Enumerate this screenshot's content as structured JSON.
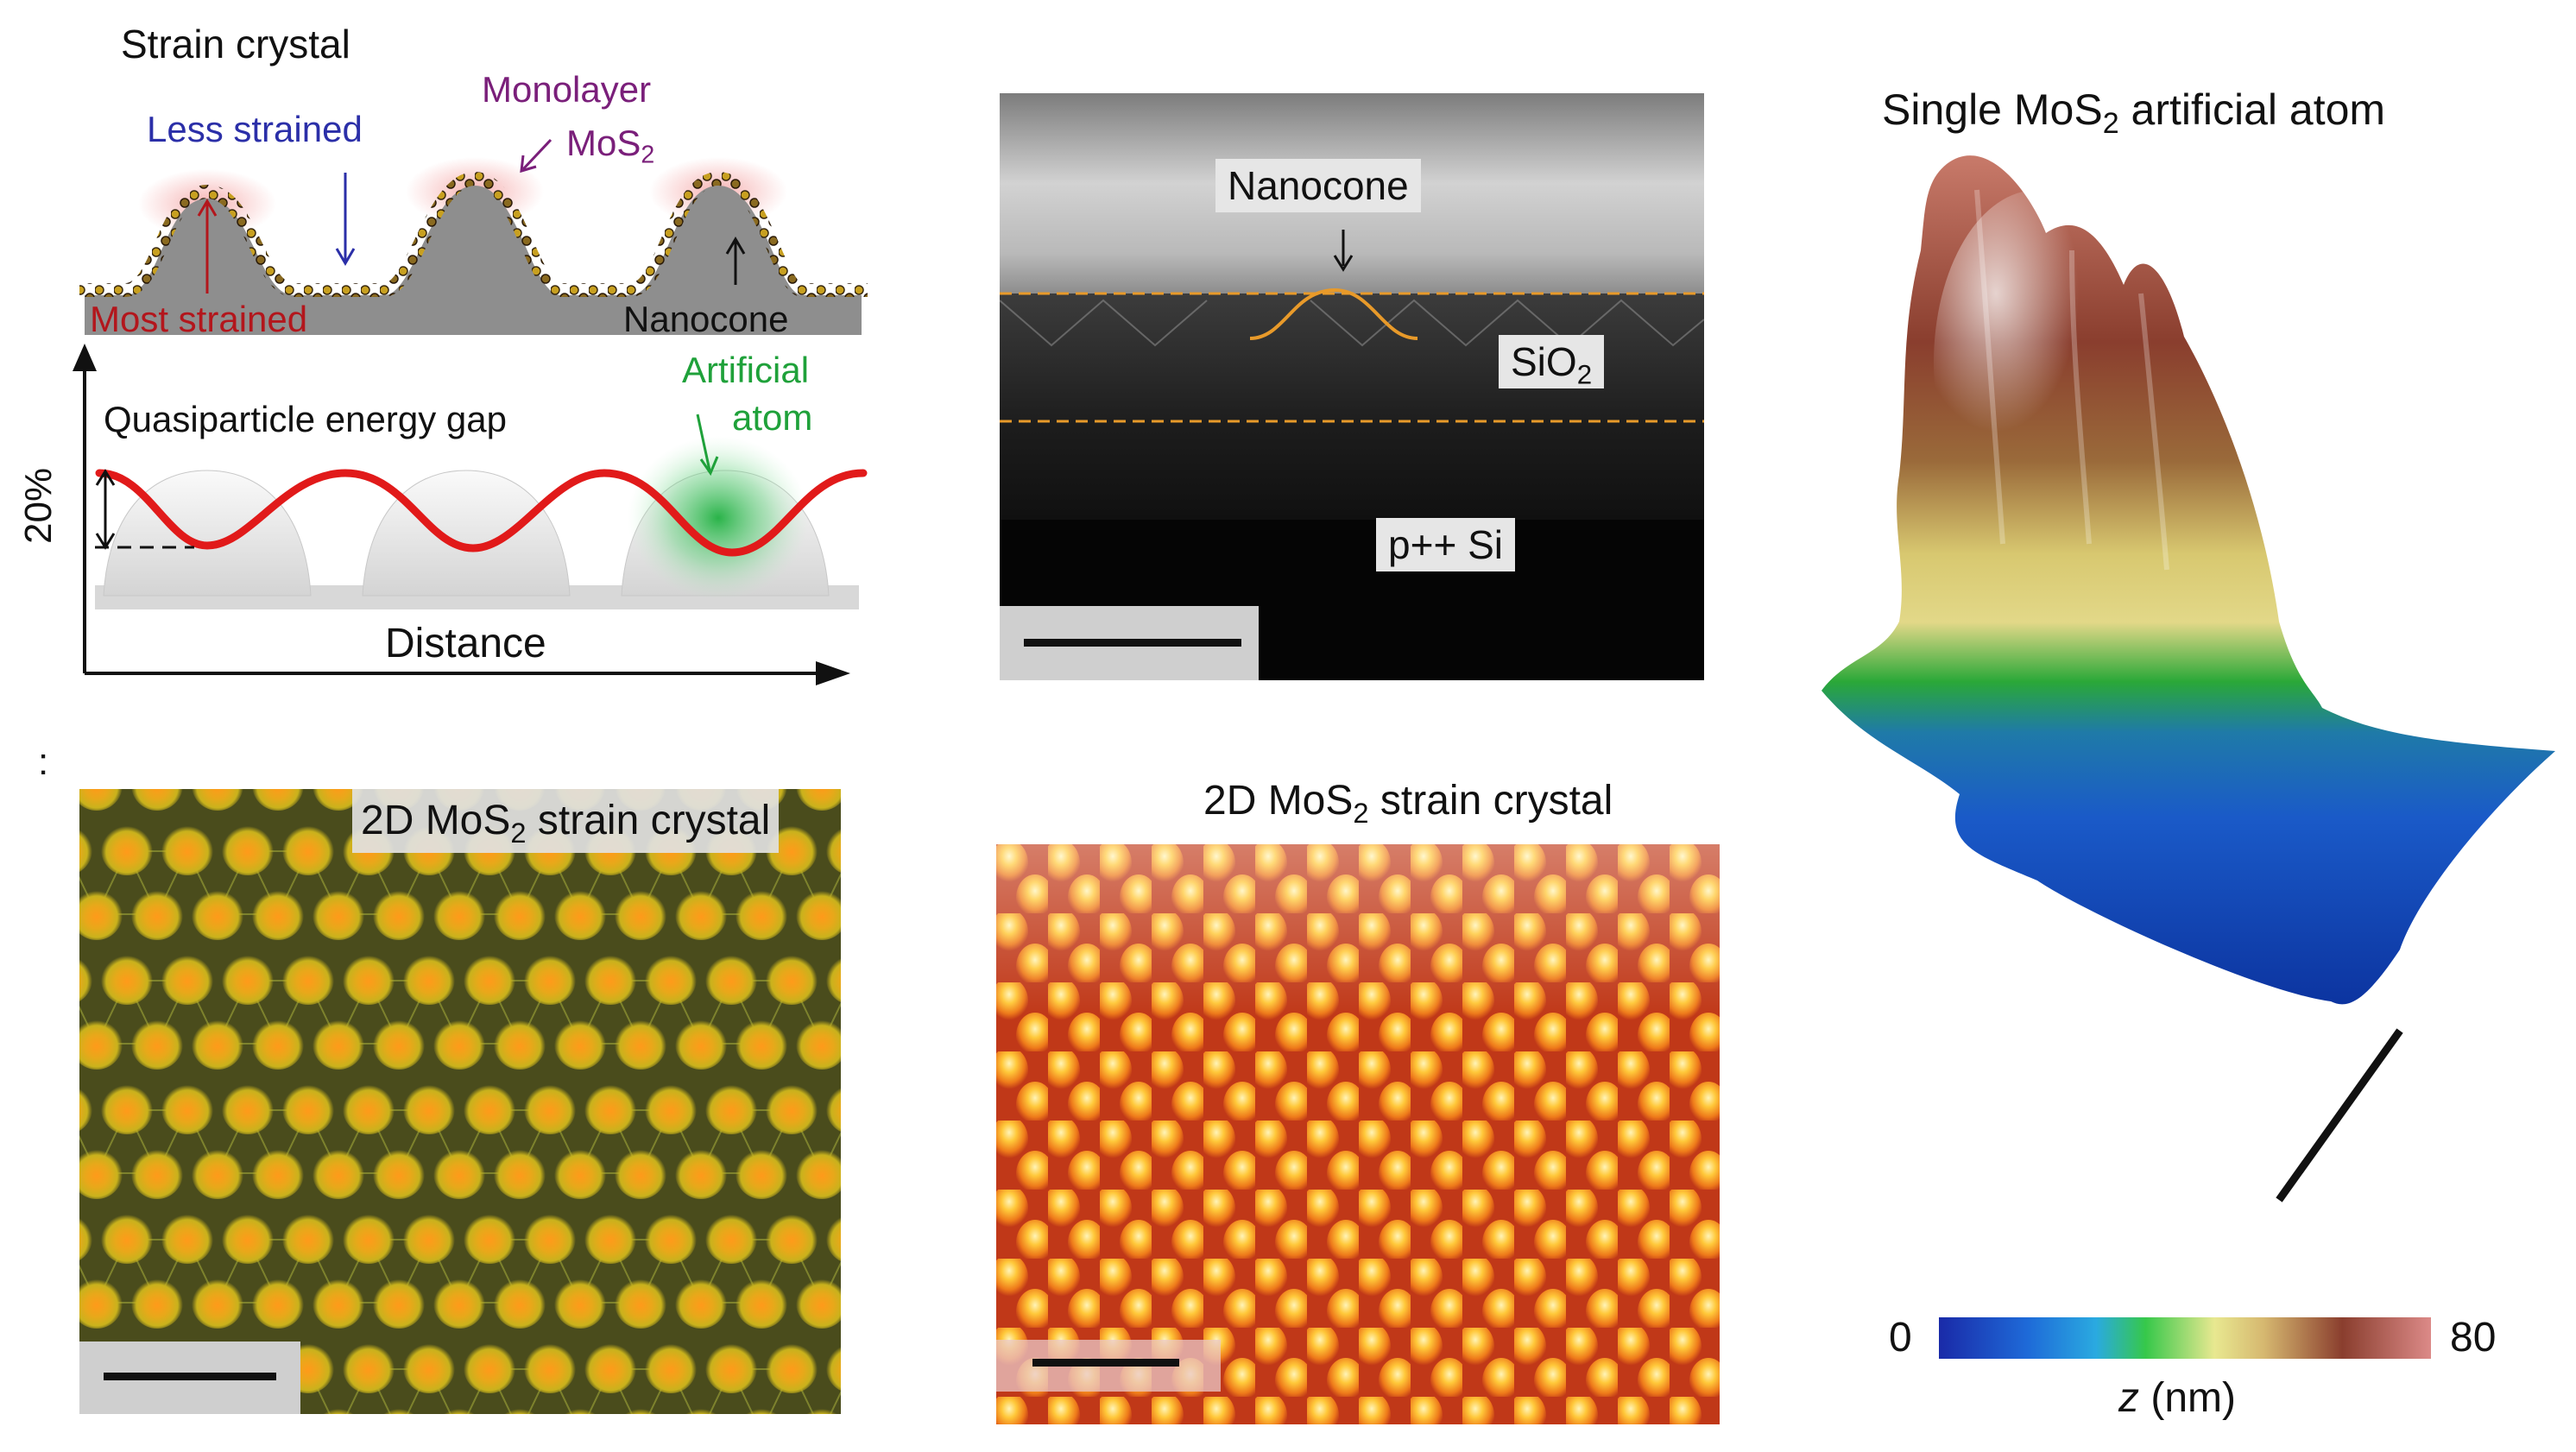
{
  "panel_a": {
    "title": "Strain crystal",
    "less_strained": "Less strained",
    "monolayer_line1": "Monolayer",
    "monolayer_line2": "MoS",
    "monolayer_sub": "2",
    "most_strained": "Most strained",
    "nanocone": "Nanocone",
    "artificial_line1": "Artificial",
    "artificial_line2": "atom",
    "gap_label": "Quasiparticle energy gap",
    "y_scale": "20%",
    "x_label": "Distance",
    "colors": {
      "less": "#2b2fa8",
      "most": "#b3161c",
      "monolayer": "#7a1f7a",
      "atom": "#1fa13a",
      "gap_curve": "#e11a1a"
    }
  },
  "panel_b": {
    "nanocone": "Nanocone",
    "sio2": "SiO",
    "sio2_sub": "2",
    "si": "p++ Si"
  },
  "panel_c": {
    "marker": ":",
    "label_pre": "2D MoS",
    "label_sub": "2",
    "label_post": " strain crystal"
  },
  "panel_d": {
    "label_pre": "2D MoS",
    "label_sub": "2",
    "label_post": " strain crystal"
  },
  "panel_e": {
    "title_pre": "Single MoS",
    "title_sub": "2",
    "title_post": " artificial atom",
    "cbar_min": "0",
    "cbar_max": "80",
    "cbar_var": "z",
    "cbar_unit": " (nm)"
  }
}
